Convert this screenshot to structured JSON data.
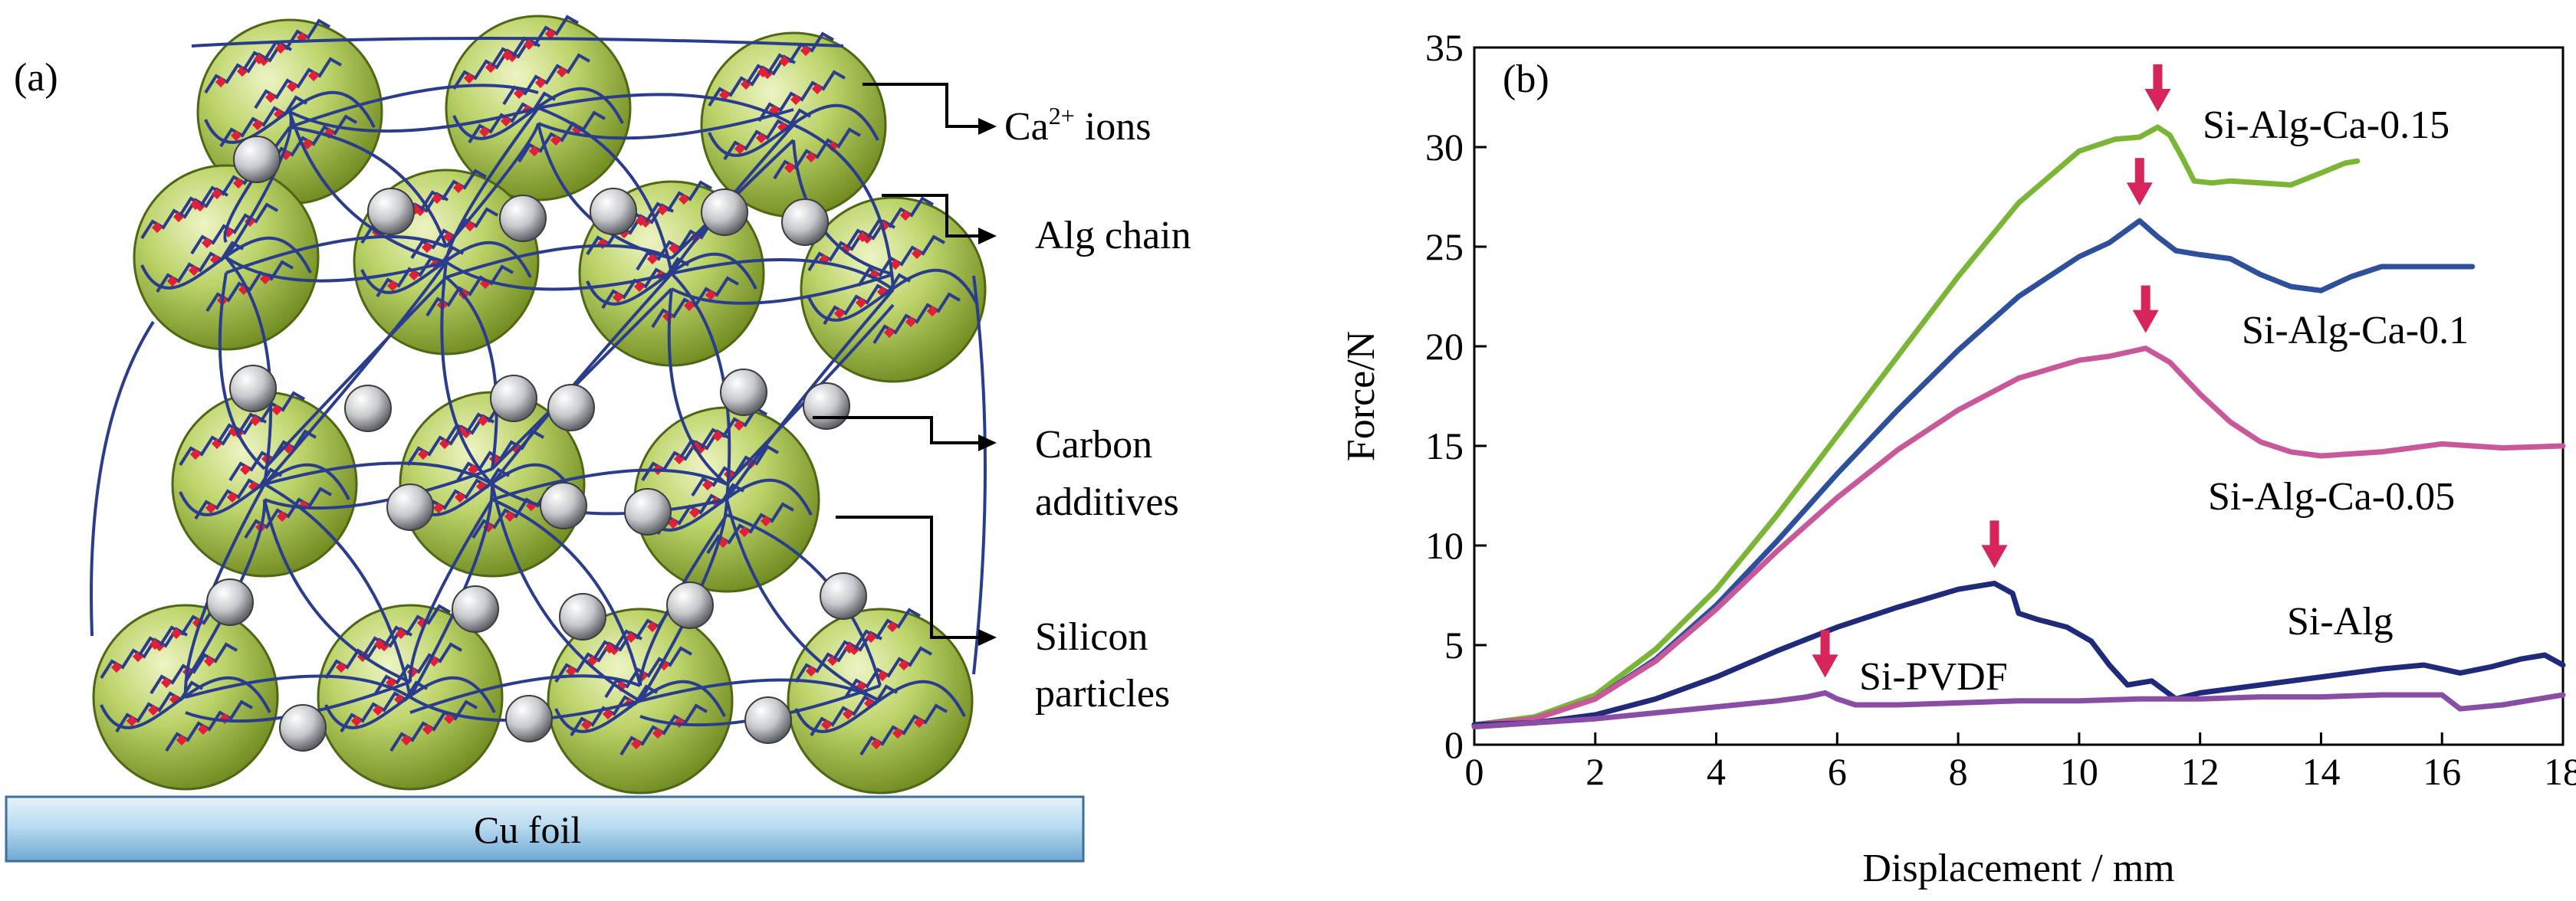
{
  "panel_a": {
    "label": "(a)",
    "legend": {
      "ca_ions": {
        "main": "Ca",
        "sup": "2+",
        "tail": " ions"
      },
      "alg_chain": "Alg chain",
      "carbon": [
        "Carbon",
        "additives"
      ],
      "silicon": [
        "Silicon",
        "particles"
      ]
    },
    "cu_foil": "Cu foil",
    "colors": {
      "particle": "#a9c24a",
      "chain": "#2a3c8c",
      "ion": "#e0203a",
      "foil": "#9ec9e6"
    }
  },
  "panel_b": {
    "label": "(b)",
    "colors": {
      "arrow": "#d6255a"
    }
  },
  "chart_data": {
    "type": "line",
    "xlabel": "Displacement / mm",
    "ylabel": "Force/N",
    "xlim": [
      0,
      18
    ],
    "ylim": [
      0,
      35
    ],
    "xticks": [
      "0",
      "2",
      "4",
      "6",
      "8",
      "10",
      "12",
      "14",
      "16",
      "18"
    ],
    "yticks": [
      "0",
      "5",
      "10",
      "15",
      "20",
      "25",
      "30",
      "35"
    ],
    "grid": false,
    "series": [
      {
        "name": "Si-Alg-Ca-0.15",
        "color": "#7ab536",
        "peak": [
          11.3,
          31
        ],
        "points": [
          [
            0,
            1
          ],
          [
            1,
            1.4
          ],
          [
            2,
            2.5
          ],
          [
            3,
            4.8
          ],
          [
            4,
            7.8
          ],
          [
            5,
            11.5
          ],
          [
            6,
            15.5
          ],
          [
            7,
            19.5
          ],
          [
            8,
            23.5
          ],
          [
            9,
            27.2
          ],
          [
            10,
            29.8
          ],
          [
            10.6,
            30.4
          ],
          [
            11,
            30.5
          ],
          [
            11.3,
            31
          ],
          [
            11.5,
            30.6
          ],
          [
            11.7,
            29.5
          ],
          [
            11.9,
            28.3
          ],
          [
            12.2,
            28.2
          ],
          [
            12.5,
            28.3
          ],
          [
            13,
            28.2
          ],
          [
            13.5,
            28.1
          ],
          [
            14,
            28.7
          ],
          [
            14.4,
            29.2
          ],
          [
            14.6,
            29.3
          ]
        ]
      },
      {
        "name": "Si-Alg-Ca-0.1",
        "color": "#2e4f9c",
        "peak": [
          11,
          26.3
        ],
        "points": [
          [
            0,
            1
          ],
          [
            1,
            1.3
          ],
          [
            2,
            2.3
          ],
          [
            3,
            4.3
          ],
          [
            4,
            7
          ],
          [
            5,
            10.2
          ],
          [
            6,
            13.6
          ],
          [
            7,
            16.8
          ],
          [
            8,
            19.8
          ],
          [
            9,
            22.5
          ],
          [
            10,
            24.5
          ],
          [
            10.5,
            25.2
          ],
          [
            11,
            26.3
          ],
          [
            11.3,
            25.5
          ],
          [
            11.6,
            24.8
          ],
          [
            12,
            24.6
          ],
          [
            12.5,
            24.4
          ],
          [
            13,
            23.6
          ],
          [
            13.5,
            23
          ],
          [
            14,
            22.8
          ],
          [
            14.5,
            23.5
          ],
          [
            15,
            24
          ],
          [
            15.5,
            24
          ],
          [
            16,
            24
          ],
          [
            16.5,
            24
          ]
        ]
      },
      {
        "name": "Si-Alg-Ca-0.05",
        "color": "#c9589a",
        "peak": [
          11.1,
          19.9
        ],
        "points": [
          [
            0,
            1
          ],
          [
            1,
            1.3
          ],
          [
            2,
            2.3
          ],
          [
            3,
            4.2
          ],
          [
            4,
            6.8
          ],
          [
            5,
            9.7
          ],
          [
            6,
            12.4
          ],
          [
            7,
            14.8
          ],
          [
            8,
            16.8
          ],
          [
            9,
            18.4
          ],
          [
            10,
            19.3
          ],
          [
            10.5,
            19.5
          ],
          [
            11.1,
            19.9
          ],
          [
            11.5,
            19.2
          ],
          [
            12,
            17.6
          ],
          [
            12.5,
            16.2
          ],
          [
            13,
            15.2
          ],
          [
            13.5,
            14.7
          ],
          [
            14,
            14.5
          ],
          [
            14.5,
            14.6
          ],
          [
            15,
            14.7
          ],
          [
            15.5,
            14.9
          ],
          [
            16,
            15.1
          ],
          [
            16.5,
            15
          ],
          [
            17,
            14.9
          ],
          [
            18,
            15
          ]
        ]
      },
      {
        "name": "Si-Alg",
        "color": "#1f2a7a",
        "peak": [
          8.6,
          8.1
        ],
        "points": [
          [
            0,
            1
          ],
          [
            1,
            1.1
          ],
          [
            2,
            1.5
          ],
          [
            3,
            2.3
          ],
          [
            4,
            3.4
          ],
          [
            5,
            4.7
          ],
          [
            6,
            5.9
          ],
          [
            7,
            6.9
          ],
          [
            8,
            7.8
          ],
          [
            8.6,
            8.1
          ],
          [
            8.9,
            7.6
          ],
          [
            9,
            6.6
          ],
          [
            9.3,
            6.3
          ],
          [
            9.8,
            5.9
          ],
          [
            10.2,
            5.2
          ],
          [
            10.5,
            4
          ],
          [
            10.8,
            3
          ],
          [
            11.2,
            3.2
          ],
          [
            11.6,
            2.3
          ],
          [
            12,
            2.6
          ],
          [
            13,
            3
          ],
          [
            14,
            3.4
          ],
          [
            15,
            3.8
          ],
          [
            15.7,
            4
          ],
          [
            16.3,
            3.6
          ],
          [
            16.8,
            3.9
          ],
          [
            17.3,
            4.3
          ],
          [
            17.7,
            4.5
          ],
          [
            18,
            4
          ]
        ]
      },
      {
        "name": "Si-PVDF",
        "color": "#8a4da6",
        "peak": [
          5.8,
          2.6
        ],
        "points": [
          [
            0,
            0.9
          ],
          [
            1,
            1.1
          ],
          [
            2,
            1.3
          ],
          [
            3,
            1.6
          ],
          [
            4,
            1.9
          ],
          [
            5,
            2.2
          ],
          [
            5.5,
            2.4
          ],
          [
            5.8,
            2.6
          ],
          [
            6,
            2.3
          ],
          [
            6.3,
            2
          ],
          [
            7,
            2
          ],
          [
            8,
            2.1
          ],
          [
            9,
            2.2
          ],
          [
            10,
            2.2
          ],
          [
            11,
            2.3
          ],
          [
            12,
            2.3
          ],
          [
            13,
            2.4
          ],
          [
            14,
            2.4
          ],
          [
            15,
            2.5
          ],
          [
            16,
            2.5
          ],
          [
            16.3,
            1.8
          ],
          [
            17,
            2
          ],
          [
            18,
            2.5
          ]
        ]
      }
    ]
  }
}
